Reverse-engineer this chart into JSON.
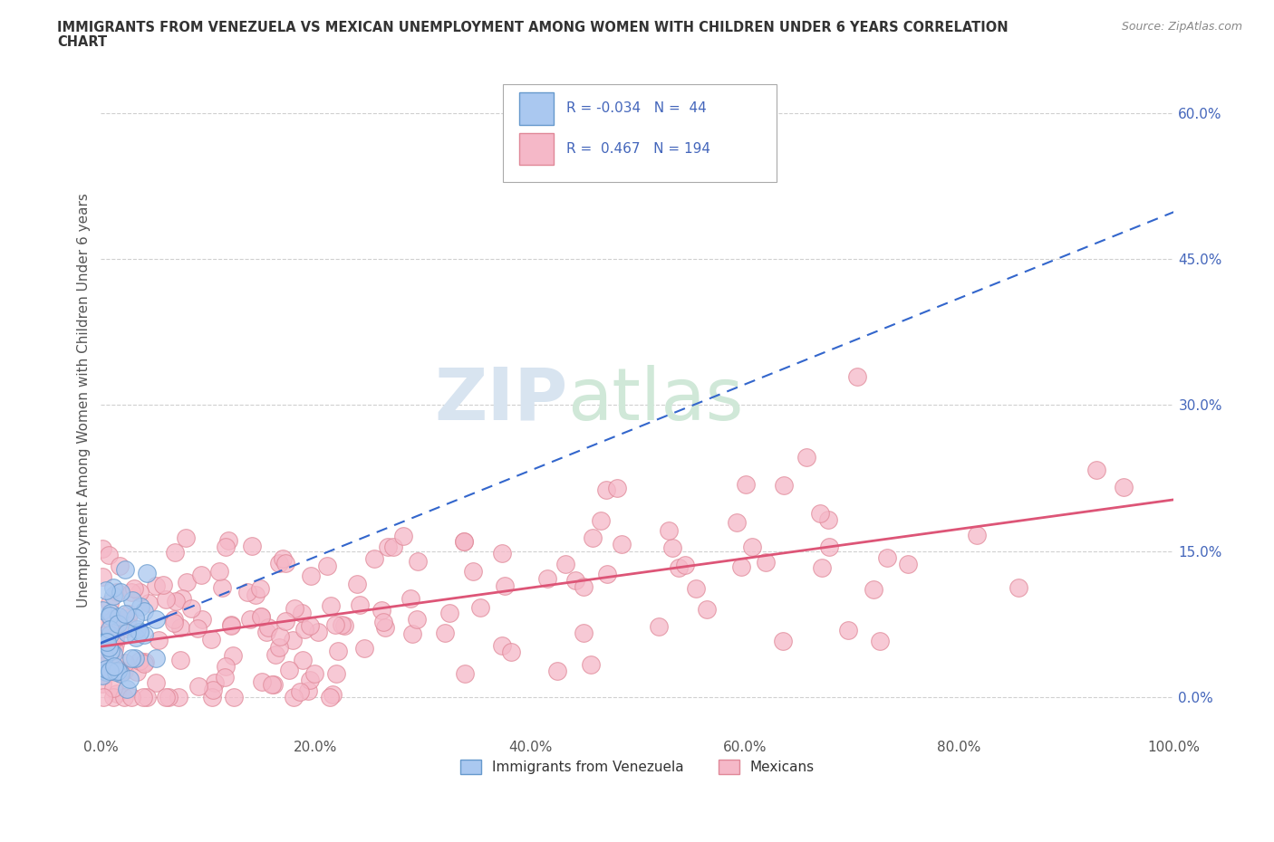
{
  "title_line1": "IMMIGRANTS FROM VENEZUELA VS MEXICAN UNEMPLOYMENT AMONG WOMEN WITH CHILDREN UNDER 6 YEARS CORRELATION",
  "title_line2": "CHART",
  "source": "Source: ZipAtlas.com",
  "ylabel": "Unemployment Among Women with Children Under 6 years",
  "xlim": [
    0.0,
    1.0
  ],
  "ylim": [
    -0.04,
    0.65
  ],
  "xticks": [
    0.0,
    0.2,
    0.4,
    0.6,
    0.8,
    1.0
  ],
  "xticklabels": [
    "0.0%",
    "20.0%",
    "40.0%",
    "60.0%",
    "80.0%",
    "100.0%"
  ],
  "yticks": [
    0.0,
    0.15,
    0.3,
    0.45,
    0.6
  ],
  "yticklabels": [
    "0.0%",
    "15.0%",
    "30.0%",
    "45.0%",
    "60.0%"
  ],
  "grid_color": "#d0d0d0",
  "background_color": "#ffffff",
  "watermark_text": "ZIP",
  "watermark_text2": "atlas",
  "legend_R1": "-0.034",
  "legend_N1": "44",
  "legend_R2": "0.467",
  "legend_N2": "194",
  "series1_face_color": "#aac8f0",
  "series1_edge_color": "#6699cc",
  "series2_face_color": "#f5b8c8",
  "series2_edge_color": "#e08898",
  "line1_color": "#3366cc",
  "line2_color": "#dd5577",
  "series1_label": "Immigrants from Venezuela",
  "series2_label": "Mexicans",
  "tick_color": "#4466bb",
  "axis_label_color": "#555555",
  "title_color": "#333333"
}
